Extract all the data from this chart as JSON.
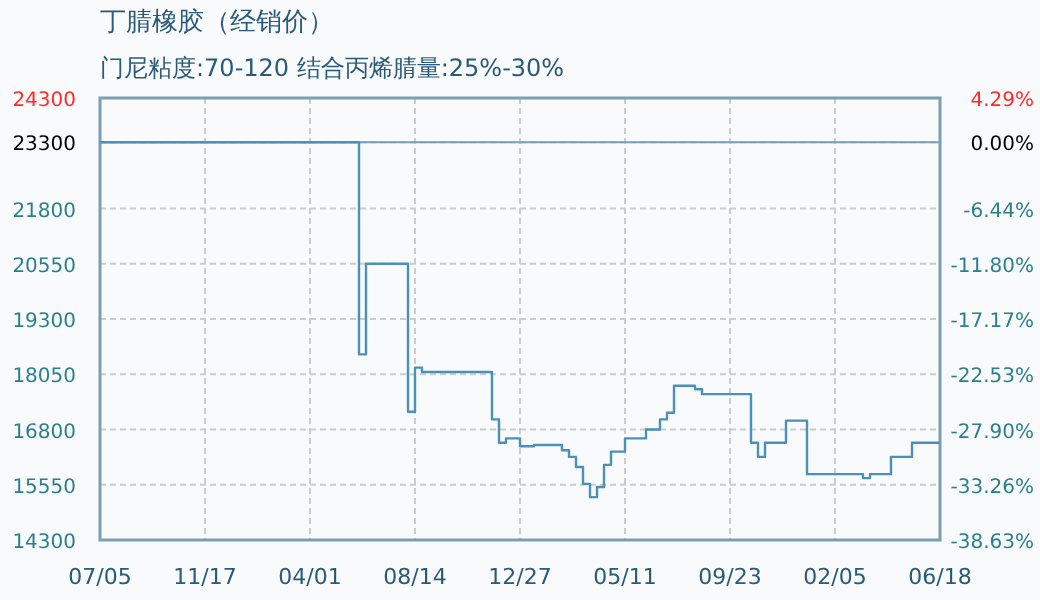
{
  "chart_data": {
    "type": "step",
    "title": "丁腈橡胶（经销价）",
    "subtitle": "门尼粘度:70-120 结合丙烯腈量:25%-30%",
    "categories": [
      "07/05",
      null,
      null,
      null,
      null,
      null,
      null,
      null,
      null,
      null,
      null,
      null,
      null,
      null,
      null,
      "11/17",
      null,
      null,
      null,
      null,
      null,
      null,
      null,
      null,
      null,
      null,
      null,
      null,
      null,
      null,
      "04/01",
      null,
      null,
      null,
      null,
      null,
      null,
      null,
      null,
      null,
      null,
      null,
      null,
      null,
      null,
      "08/14",
      null,
      null,
      null,
      null,
      null,
      null,
      null,
      null,
      null,
      null,
      null,
      null,
      null,
      null,
      "12/27",
      null,
      null,
      null,
      null,
      null,
      null,
      null,
      null,
      null,
      null,
      null,
      null,
      null,
      null,
      "05/11",
      null,
      null,
      null,
      null,
      null,
      null,
      null,
      null,
      null,
      null,
      null,
      null,
      null,
      null,
      "09/23",
      null,
      null,
      null,
      null,
      null,
      null,
      null,
      null,
      null,
      null,
      null,
      null,
      null,
      null,
      "02/05",
      null,
      null,
      null,
      null,
      null,
      null,
      null,
      null,
      null,
      null,
      null,
      null,
      null,
      null,
      "06/18"
    ],
    "series": [
      {
        "color": "#4a90b8",
        "values": [
          23300,
          23300,
          23300,
          23300,
          23300,
          23300,
          23300,
          23300,
          23300,
          23300,
          23300,
          23300,
          23300,
          23300,
          23300,
          23300,
          23300,
          23300,
          23300,
          23300,
          23300,
          23300,
          23300,
          23300,
          23300,
          23300,
          23300,
          23300,
          23300,
          23300,
          23300,
          23300,
          23300,
          23300,
          23300,
          23300,
          23300,
          18500,
          20550,
          20550,
          20550,
          20550,
          20550,
          20550,
          17200,
          18200,
          18100,
          18100,
          18100,
          18100,
          18100,
          18100,
          18100,
          18100,
          18100,
          18100,
          17030,
          16500,
          16600,
          16600,
          16420,
          16420,
          16450,
          16450,
          16450,
          16450,
          16330,
          16180,
          15950,
          15570,
          15270,
          15500,
          16000,
          16300,
          16300,
          16600,
          16600,
          16600,
          16800,
          16800,
          17030,
          17180,
          17790,
          17790,
          17790,
          17710,
          17600,
          17600,
          17600,
          17600,
          17600,
          17600,
          17600,
          16500,
          16180,
          16500,
          16500,
          16500,
          17000,
          17000,
          17000,
          15790,
          15790,
          15790,
          15790,
          15790,
          15790,
          15790,
          15790,
          15700,
          15790,
          15790,
          15790,
          16180,
          16180,
          16180,
          16500,
          16500,
          16500,
          16500,
          16500
        ]
      }
    ],
    "ylim": [
      14300,
      24300
    ],
    "yticks": [
      14300,
      15550,
      16800,
      18050,
      19300,
      20550,
      21800,
      23300,
      24300
    ],
    "y2lim": [
      -38.63,
      4.29
    ],
    "y2ticks": [
      {
        "value": -38.63,
        "label": "-38.63%"
      },
      {
        "value": -33.26,
        "label": "-33.26%"
      },
      {
        "value": -27.9,
        "label": "-27.90%"
      },
      {
        "value": -22.53,
        "label": "-22.53%"
      },
      {
        "value": -17.17,
        "label": "-17.17%"
      },
      {
        "value": -11.8,
        "label": "-11.80%"
      },
      {
        "value": -6.44,
        "label": "-6.44%"
      },
      {
        "value": 0,
        "label": "0.00%"
      },
      {
        "value": 4.29,
        "label": "4.29%"
      }
    ],
    "ref_lines": [
      {
        "axis": "y",
        "value": 23300,
        "color": "#7a9fb5"
      }
    ],
    "grid": true
  }
}
